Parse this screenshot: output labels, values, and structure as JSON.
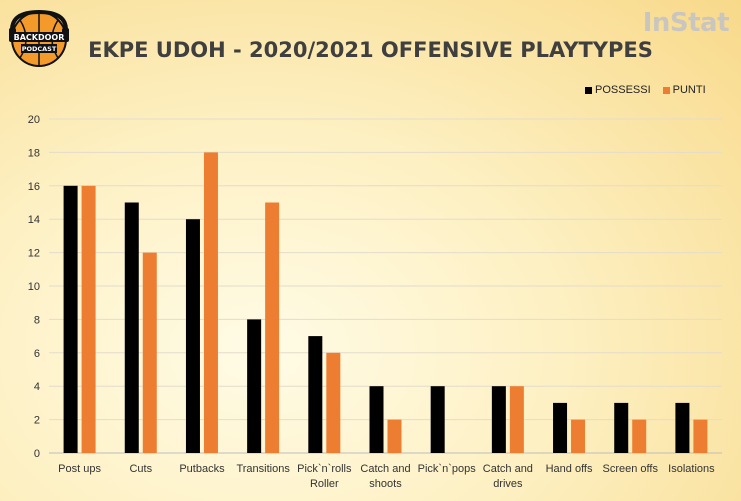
{
  "logo": {
    "text_top": "BACKDOOR",
    "text_bottom": "PODCAST"
  },
  "brand": "InStat",
  "chart_data": {
    "type": "bar",
    "title": "EKPE UDOH - 2020/2021 OFFENSIVE PLAYTYPES",
    "categories": [
      [
        "Post ups"
      ],
      [
        "Cuts"
      ],
      [
        "Putbacks"
      ],
      [
        "Transitions"
      ],
      [
        "Pick`n`rolls",
        "Roller"
      ],
      [
        "Catch and",
        "shoots"
      ],
      [
        "Pick`n`pops"
      ],
      [
        "Catch and",
        "drives"
      ],
      [
        "Hand offs"
      ],
      [
        "Screen offs"
      ],
      [
        "Isolations"
      ]
    ],
    "series": [
      {
        "name": "POSSESSI",
        "color": "#000000",
        "values": [
          16,
          15,
          14,
          8,
          7,
          4,
          4,
          4,
          3,
          3,
          3
        ]
      },
      {
        "name": "PUNTI",
        "color": "#ed7d31",
        "values": [
          16,
          12,
          18,
          15,
          6,
          2,
          0,
          4,
          2,
          2,
          2
        ]
      }
    ],
    "ylim": [
      0,
      20
    ],
    "yticks": [
      0,
      2,
      4,
      6,
      8,
      10,
      12,
      14,
      16,
      18,
      20
    ],
    "grid": true,
    "legend": "top-right"
  }
}
